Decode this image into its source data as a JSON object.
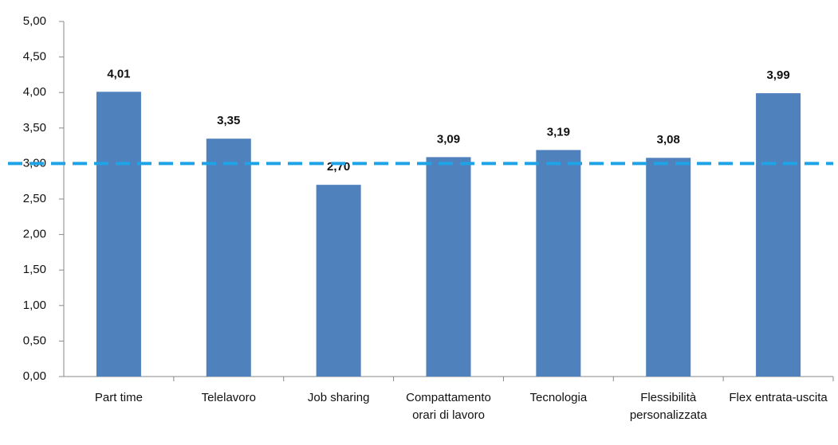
{
  "chart_data": {
    "type": "bar",
    "categories": [
      "Part time",
      "Telelavoro",
      "Job sharing",
      "Compattamento orari di lavoro",
      "Tecnologia",
      "Flessibilità personalizzata",
      "Flex entrata-uscita"
    ],
    "values": [
      4.01,
      3.35,
      2.7,
      3.09,
      3.19,
      3.08,
      3.99
    ],
    "value_labels": [
      "4,01",
      "3,35",
      "2,70",
      "3,09",
      "3,19",
      "3,08",
      "3,99"
    ],
    "color": "#4f81bd",
    "ylim": [
      0,
      5
    ],
    "yticks": [
      {
        "value": 0,
        "label": "0,00"
      },
      {
        "value": 0.5,
        "label": "0,50"
      },
      {
        "value": 1,
        "label": "1,00"
      },
      {
        "value": 1.5,
        "label": "1,50"
      },
      {
        "value": 2,
        "label": "2,00"
      },
      {
        "value": 2.5,
        "label": "2,50"
      },
      {
        "value": 3,
        "label": "3,00"
      },
      {
        "value": 3.5,
        "label": "3,50"
      },
      {
        "value": 4,
        "label": "4,00"
      },
      {
        "value": 4.5,
        "label": "4,50"
      },
      {
        "value": 5,
        "label": "5,00"
      }
    ],
    "reference_line": {
      "value": 3,
      "color": "#1ea4e6"
    }
  }
}
